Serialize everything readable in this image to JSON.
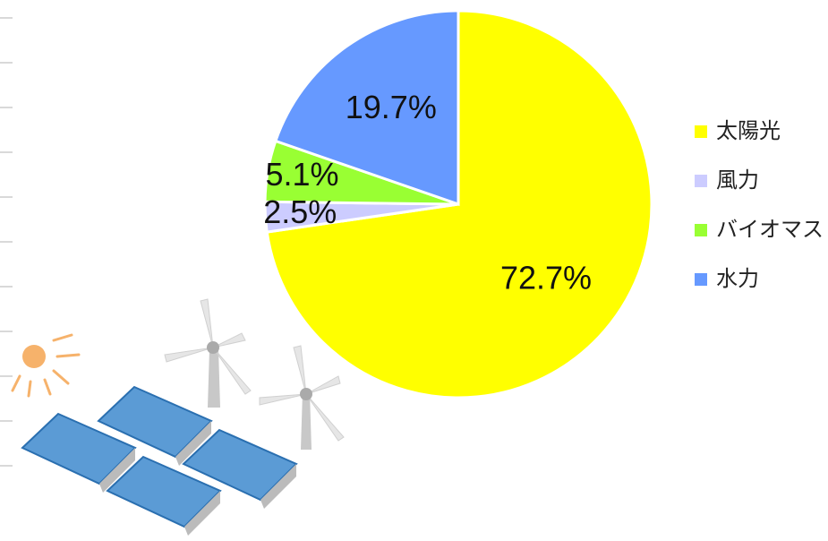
{
  "chart_data": {
    "type": "pie",
    "categories": [
      "太陽光",
      "風力",
      "バイオマス",
      "水力"
    ],
    "values": [
      72.7,
      2.5,
      5.1,
      19.7
    ],
    "value_labels": [
      "72.7%",
      "2.5%",
      "5.1%",
      "19.7%"
    ],
    "colors": [
      "#ffff00",
      "#ccccff",
      "#99ff33",
      "#6699ff"
    ],
    "legend": "right"
  }
}
